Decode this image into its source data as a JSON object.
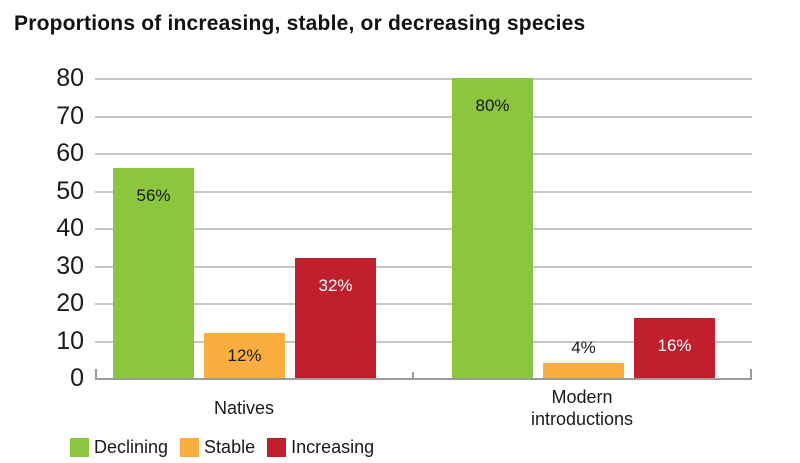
{
  "chart_data": {
    "type": "bar",
    "title": "Proportions of increasing, stable, or decreasing species",
    "categories": [
      "Natives",
      "Modern introductions"
    ],
    "series": [
      {
        "name": "Declining",
        "color": "#8CC63F",
        "label_color": "#1A1A1A",
        "values": [
          56,
          80
        ],
        "labels": [
          "56%",
          "80%"
        ]
      },
      {
        "name": "Stable",
        "color": "#FAAE40",
        "label_color": "#1A1A1A",
        "values": [
          12,
          4
        ],
        "labels": [
          "12%",
          "4%"
        ]
      },
      {
        "name": "Increasing",
        "color": "#C11F2E",
        "label_color": "#FFFFFF",
        "values": [
          32,
          16
        ],
        "labels": [
          "32%",
          "16%"
        ]
      }
    ],
    "ylim": [
      0,
      80
    ],
    "yticks": [
      "0",
      "10",
      "20",
      "30",
      "40",
      "50",
      "60",
      "70",
      "80"
    ],
    "grid": true,
    "legend_position": "bottom-left",
    "grid_color": "#C6C6C6",
    "axis_color": "#9B9B9B",
    "text_color": "#1A1A1A"
  }
}
